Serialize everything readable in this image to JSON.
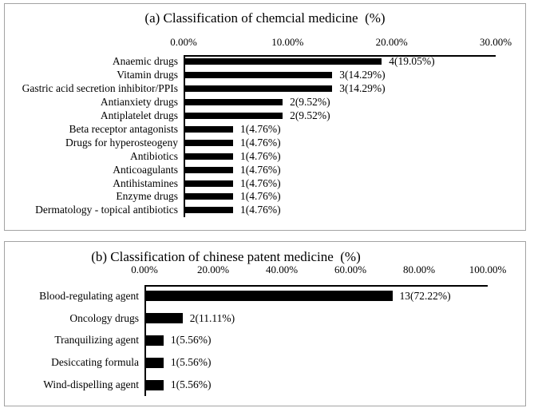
{
  "chart_data": [
    {
      "type": "bar",
      "orientation": "horizontal",
      "title": "(a) Classification of chemcial medicine  (%)",
      "xlabel": "",
      "ylabel": "",
      "xlim": [
        0,
        30
      ],
      "x_ticks": [
        "0.00%",
        "10.00%",
        "20.00%",
        "30.00%"
      ],
      "x_tick_values": [
        0,
        10,
        20,
        30
      ],
      "grid": "off",
      "bar_color": "#000000",
      "categories": [
        "Anaemic drugs",
        "Vitamin drugs",
        "Gastric acid secretion inhibitor/PPIs",
        "Antianxiety drugs",
        "Antiplatelet drugs",
        "Beta receptor antagonists",
        "Drugs for hyperosteogeny",
        "Antibiotics",
        "Anticoagulants",
        "Antihistamines",
        "Enzyme drugs",
        "Dermatology - topical antibiotics"
      ],
      "values": [
        19.05,
        14.29,
        14.29,
        9.52,
        9.52,
        4.76,
        4.76,
        4.76,
        4.76,
        4.76,
        4.76,
        4.76
      ],
      "counts": [
        4,
        3,
        3,
        2,
        2,
        1,
        1,
        1,
        1,
        1,
        1,
        1
      ],
      "bar_labels": [
        "4(19.05%)",
        "3(14.29%)",
        "3(14.29%)",
        "2(9.52%)",
        "2(9.52%)",
        "1(4.76%)",
        "1(4.76%)",
        "1(4.76%)",
        "1(4.76%)",
        "1(4.76%)",
        "1(4.76%)",
        "1(4.76%)"
      ]
    },
    {
      "type": "bar",
      "orientation": "horizontal",
      "title": "(b) Classification of chinese patent medicine  (%)",
      "xlabel": "",
      "ylabel": "",
      "xlim": [
        0,
        100
      ],
      "x_ticks": [
        "0.00%",
        "20.00%",
        "40.00%",
        "60.00%",
        "80.00%",
        "100.00%"
      ],
      "x_tick_values": [
        0,
        20,
        40,
        60,
        80,
        100
      ],
      "grid": "off",
      "bar_color": "#000000",
      "categories": [
        "Blood-regulating agent",
        "Oncology drugs",
        "Tranquilizing agent",
        "Desiccating formula",
        "Wind-dispelling agent"
      ],
      "values": [
        72.22,
        11.11,
        5.56,
        5.56,
        5.56
      ],
      "counts": [
        13,
        2,
        1,
        1,
        1
      ],
      "bar_labels": [
        "13(72.22%)",
        "2(11.11%)",
        "1(5.56%)",
        "1(5.56%)",
        "1(5.56%)"
      ]
    }
  ]
}
